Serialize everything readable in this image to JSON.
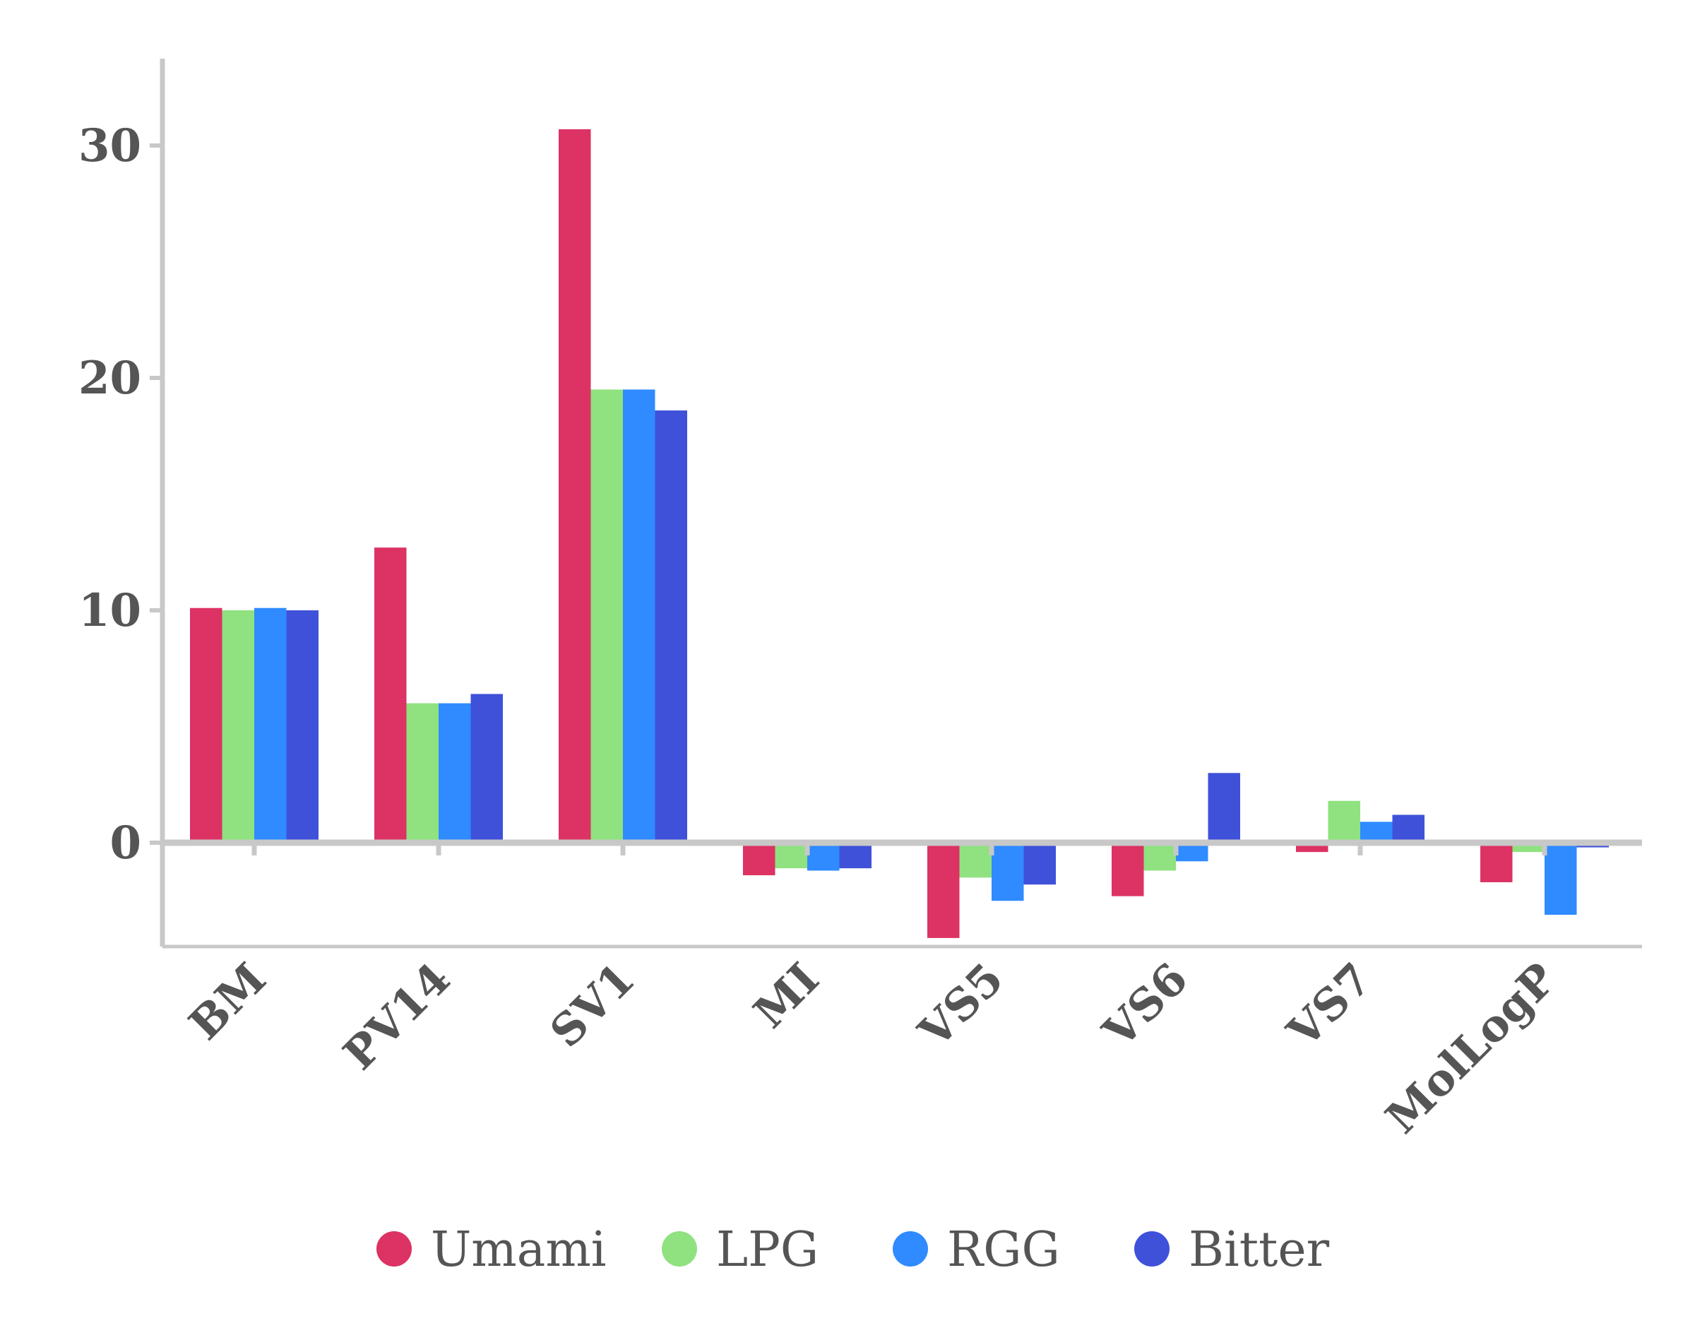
{
  "chart_data": {
    "type": "bar",
    "title": "",
    "xlabel": "",
    "ylabel": "",
    "categories": [
      "BM",
      "PV14",
      "SV1",
      "MI",
      "VS5",
      "VS6",
      "VS7",
      "MolLogP"
    ],
    "series": [
      {
        "name": "Umami",
        "color": "#dc3264",
        "values": [
          10.1,
          12.7,
          30.7,
          -1.4,
          -4.1,
          -2.3,
          -0.4,
          -1.7
        ]
      },
      {
        "name": "LPG",
        "color": "#8fe27f",
        "values": [
          10.0,
          6.0,
          19.5,
          -1.1,
          -1.5,
          -1.2,
          1.8,
          -0.4
        ]
      },
      {
        "name": "RGG",
        "color": "#2f8bff",
        "values": [
          10.1,
          6.0,
          19.5,
          -1.2,
          -2.5,
          -0.8,
          0.9,
          -3.1
        ]
      },
      {
        "name": "Bitter",
        "color": "#3f51d9",
        "values": [
          10.0,
          6.4,
          18.6,
          -1.1,
          -1.8,
          3.0,
          1.2,
          -0.2
        ]
      }
    ],
    "yticks": [
      "0",
      "10",
      "20",
      "30"
    ],
    "ylim": [
      -4.5,
      34
    ],
    "grid": false,
    "legend": "bottom",
    "axis_color": "#c8c8c8"
  }
}
